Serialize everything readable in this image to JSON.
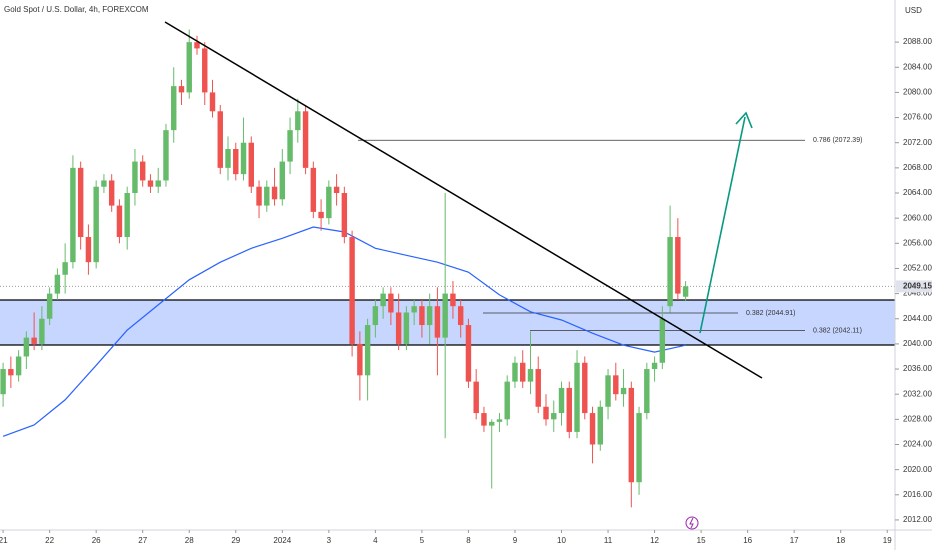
{
  "chart_data": {
    "type": "candlestick",
    "title": "Gold Spot / U.S. Dollar, 4h, FOREXCOM",
    "currency": "USD",
    "last_price": 2049.15,
    "up_color": "#66bb6a",
    "down_color": "#ef5350",
    "x": [
      0,
      1,
      2,
      3,
      4,
      5,
      6,
      7,
      8,
      9,
      10,
      11,
      12,
      13,
      14,
      15,
      16,
      17,
      18,
      19,
      20,
      21,
      22,
      23,
      24,
      25,
      26,
      27,
      28,
      29,
      30,
      31,
      32,
      33,
      34,
      35,
      36,
      37,
      38,
      39,
      40,
      41,
      42,
      43,
      44,
      45,
      46,
      47,
      48,
      49,
      50,
      51,
      52,
      53,
      54,
      55,
      56,
      57,
      58,
      59,
      60,
      61,
      62,
      63,
      64,
      65,
      66,
      67,
      68,
      69,
      70,
      71,
      72,
      73,
      74,
      75,
      76,
      77,
      78,
      79,
      80,
      81,
      82,
      83,
      84,
      85,
      86,
      87,
      88
    ],
    "open": [
      2032,
      2036,
      2035,
      2038,
      2041,
      2040,
      2044,
      2048,
      2051,
      2053,
      2068,
      2057,
      2053,
      2065,
      2066,
      2062,
      2057,
      2064,
      2069,
      2066,
      2065,
      2066,
      2074,
      2081,
      2080,
      2088,
      2087,
      2080,
      2077,
      2068,
      2071,
      2067,
      2072,
      2065,
      2062,
      2065,
      2063,
      2069,
      2074,
      2077,
      2068,
      2061,
      2060,
      2065,
      2064,
      2057,
      2040,
      2035,
      2043,
      2046,
      2048,
      2045,
      2040,
      2045,
      2046,
      2043,
      2046,
      2041,
      2048,
      2046,
      2043,
      2034,
      2029,
      2027,
      2027.6,
      2028,
      2034,
      2037,
      2034,
      2036,
      2030,
      2028,
      2029,
      2033,
      2026,
      2037,
      2029,
      2024,
      2030,
      2035,
      2032,
      2033,
      2018,
      2029,
      2036,
      2037,
      2046,
      2057,
      2047.5
    ],
    "high": [
      2037,
      2038,
      2039,
      2042,
      2045,
      2046,
      2049,
      2052,
      2056,
      2070,
      2069,
      2059,
      2066,
      2067,
      2067,
      2063,
      2065,
      2071,
      2070,
      2067,
      2068,
      2075,
      2084,
      2082,
      2090,
      2089,
      2088,
      2082,
      2078,
      2073,
      2072,
      2076,
      2073,
      2066,
      2066,
      2068,
      2071,
      2076,
      2079,
      2078,
      2069,
      2063,
      2066,
      2067,
      2065,
      2058,
      2042,
      2044,
      2047,
      2049,
      2049,
      2048,
      2046,
      2047,
      2047,
      2048,
      2049,
      2064,
      2050,
      2047,
      2044,
      2036,
      2030,
      2028,
      2029,
      2035,
      2038,
      2039,
      2042,
      2038,
      2032,
      2031,
      2034,
      2034,
      2039,
      2038,
      2030,
      2031,
      2036,
      2037,
      2036,
      2034,
      2030,
      2037,
      2038,
      2046,
      2062,
      2060,
      2050
    ],
    "low": [
      2030,
      2033,
      2034,
      2036,
      2039,
      2039,
      2043,
      2047,
      2048,
      2052,
      2055,
      2051,
      2052,
      2064,
      2061,
      2056,
      2055,
      2062,
      2065,
      2064,
      2064,
      2065,
      2072,
      2078,
      2079,
      2086,
      2078,
      2076,
      2067,
      2066,
      2066,
      2066,
      2064,
      2060,
      2061,
      2062,
      2062,
      2067,
      2072,
      2067,
      2060,
      2058,
      2059,
      2062,
      2056,
      2038,
      2031,
      2031,
      2041,
      2044,
      2043,
      2039,
      2039,
      2043,
      2041,
      2040,
      2035,
      2025,
      2044,
      2041,
      2033,
      2028,
      2026,
      2017,
      2026,
      2027,
      2033,
      2033,
      2032,
      2029,
      2027,
      2026,
      2027,
      2025,
      2025,
      2028,
      2021,
      2023,
      2028,
      2031,
      2030,
      2014,
      2016,
      2028,
      2034,
      2036,
      2045,
      2047,
      2046.8
    ],
    "close": [
      2036,
      2035,
      2038,
      2041,
      2040,
      2044,
      2048,
      2051,
      2053,
      2068,
      2057,
      2053,
      2065,
      2066,
      2062,
      2057,
      2064,
      2069,
      2066,
      2065,
      2066,
      2074,
      2081,
      2080,
      2088,
      2087,
      2080,
      2077,
      2068,
      2071,
      2067,
      2072,
      2065,
      2062,
      2065,
      2063,
      2069,
      2074,
      2077,
      2068,
      2061,
      2060,
      2065,
      2064,
      2057,
      2040,
      2035,
      2043,
      2046,
      2048,
      2045,
      2040,
      2045,
      2046,
      2043,
      2046,
      2041,
      2048,
      2046,
      2043,
      2034,
      2029,
      2027,
      2027.6,
      2028,
      2034,
      2037,
      2034,
      2036,
      2030,
      2028,
      2029,
      2033,
      2026,
      2037,
      2029,
      2024,
      2030,
      2035,
      2032,
      2033,
      2018,
      2029,
      2036,
      2037,
      2044,
      2057,
      2048,
      2049.15
    ],
    "moving_average": {
      "color": "#2962ff",
      "x": [
        0,
        4,
        8,
        12,
        16,
        20,
        24,
        28,
        32,
        36,
        40,
        44,
        48,
        52,
        56,
        60,
        64,
        68,
        72,
        76,
        80,
        84,
        88
      ],
      "values": [
        2025.3,
        2027.1,
        2031.1,
        2036.6,
        2042.2,
        2046.2,
        2050.2,
        2053.0,
        2055.2,
        2056.8,
        2058.6,
        2057.8,
        2055.2,
        2054.1,
        2053.0,
        2051.4,
        2047.8,
        2045.1,
        2043.8,
        2041.7,
        2039.8,
        2038.7,
        2039.8
      ]
    },
    "levels": [
      {
        "label": "0.786 (2072.39)",
        "value": 2072.39
      },
      {
        "label": "0.382 (2044.91)",
        "value": 2044.91
      },
      {
        "label": "0.382 (2042.11)",
        "value": 2042.11
      }
    ],
    "xlim": [
      -0.4,
      115
    ],
    "ylim": [
      2010.4,
      2094.7
    ],
    "xticks": [
      {
        "value": 0,
        "label": "21"
      },
      {
        "value": 6,
        "label": "22"
      },
      {
        "value": 12,
        "label": "26"
      },
      {
        "value": 18,
        "label": "27"
      },
      {
        "value": 24,
        "label": "28"
      },
      {
        "value": 30,
        "label": "29"
      },
      {
        "value": 36,
        "label": "2024"
      },
      {
        "value": 42,
        "label": "3"
      },
      {
        "value": 48,
        "label": "4"
      },
      {
        "value": 54,
        "label": "5"
      },
      {
        "value": 60,
        "label": "8"
      },
      {
        "value": 66,
        "label": "9"
      },
      {
        "value": 72,
        "label": "10"
      },
      {
        "value": 78,
        "label": "11"
      },
      {
        "value": 84,
        "label": "12"
      },
      {
        "value": 90,
        "label": "15"
      },
      {
        "value": 96,
        "label": "16"
      },
      {
        "value": 102,
        "label": "17"
      },
      {
        "value": 108,
        "label": "18"
      },
      {
        "value": 114,
        "label": "19"
      }
    ],
    "yticks": [
      {
        "value": 2012,
        "label": "2012.00"
      },
      {
        "value": 2016,
        "label": "2016.00"
      },
      {
        "value": 2020,
        "label": "2020.00"
      },
      {
        "value": 2024,
        "label": "2024.00"
      },
      {
        "value": 2028,
        "label": "2028.00"
      },
      {
        "value": 2032,
        "label": "2032.00"
      },
      {
        "value": 2036,
        "label": "2036.00"
      },
      {
        "value": 2040,
        "label": "2040.00"
      },
      {
        "value": 2044,
        "label": "2044.00"
      },
      {
        "value": 2048,
        "label": "2048.00"
      },
      {
        "value": 2052,
        "label": "2052.00"
      },
      {
        "value": 2056,
        "label": "2056.00"
      },
      {
        "value": 2060,
        "label": "2060.00"
      },
      {
        "value": 2064,
        "label": "2064.00"
      },
      {
        "value": 2068,
        "label": "2068.00"
      },
      {
        "value": 2072,
        "label": "2072.00"
      },
      {
        "value": 2076,
        "label": "2076.00"
      },
      {
        "value": 2080,
        "label": "2080.00"
      },
      {
        "value": 2084,
        "label": "2084.00"
      },
      {
        "value": 2088,
        "label": "2088.00"
      }
    ],
    "grid": false
  }
}
